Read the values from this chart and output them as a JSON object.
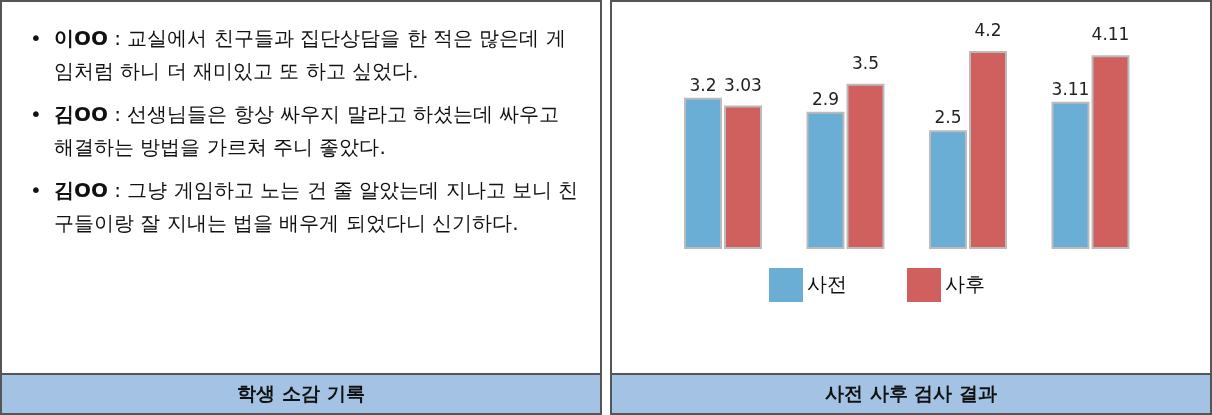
{
  "chart_data": [
    {
      "type": "other",
      "title": "학생 소감 기록",
      "annotations": [
        "• 이OO : 교실에서 친구들과 집단상담을 한 적은 많은데 게임처럼 하니 더 재미있고 또 하고 싶었다.",
        "• 김OO : 선생님들은 항상 싸우지 말라고 하셨는데 싸우고 해결하는 방법을 가르쳐 주니 좋았다.",
        "• 김OO : 그냥 게임하고 노는 건 줄 알았는데 지나고 보니 친구들이랑 잘 지내는 법을 배우게 되었다니 신기하다."
      ]
    },
    {
      "type": "bar",
      "title": "사전 사후 검사 결과",
      "categories": [
        null,
        null,
        null,
        null
      ],
      "data_labels": true,
      "legend": "bottom",
      "series": [
        {
          "name": "사전",
          "color": "#6aadd5",
          "values": [
            3.2,
            2.9,
            2.5,
            3.11
          ]
        },
        {
          "name": "사후",
          "color": "#cf605e",
          "values": [
            3.03,
            3.5,
            4.2,
            4.11
          ]
        }
      ]
    }
  ]
}
